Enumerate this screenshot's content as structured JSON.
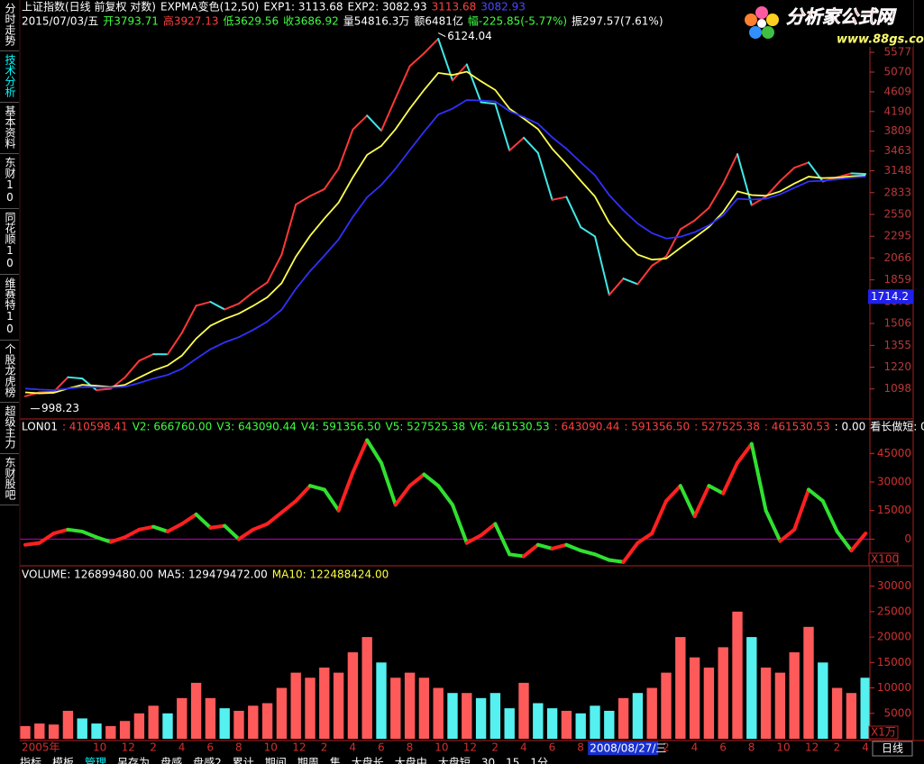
{
  "sidebar_tabs": [
    {
      "label": "分时走势"
    },
    {
      "label": "技术分析",
      "active": true
    },
    {
      "label": "基本资料"
    },
    {
      "label": "东财10"
    },
    {
      "label": "同花顺10"
    },
    {
      "label": "维赛特10"
    },
    {
      "label": "个股龙虎榜"
    },
    {
      "label": "超级主力"
    },
    {
      "label": "东财股吧"
    }
  ],
  "logo": {
    "title": "分析家公式网",
    "url": "www.88gs.com"
  },
  "period_label": "日线",
  "toolbar": [
    "指标",
    "模板",
    "管理",
    "另存为",
    "盘感",
    "盘感2",
    "累计",
    "期间",
    "期周",
    "集",
    "大盘长",
    "大盘中",
    "大盘短",
    "30",
    "15",
    "1分"
  ],
  "chart_data": [
    {
      "type": "line",
      "log_scale": true,
      "header": [
        [
          {
            "text": "上证指数(日线 前复权 对数)",
            "color": "#ffffff"
          },
          {
            "text": "EXPMA变色(12,50)",
            "color": "#ffffff"
          },
          {
            "text": "EXP1: 3113.68",
            "color": "#ffffff"
          },
          {
            "text": "EXP2: 3082.93",
            "color": "#ffffff"
          },
          {
            "text": "3113.68",
            "color": "#ff4040"
          },
          {
            "text": "3082.93",
            "color": "#4848ff"
          }
        ],
        [
          {
            "text": "2015/07/03/五",
            "color": "#ffffff"
          },
          {
            "text": "开3793.71",
            "color": "#40ff40"
          },
          {
            "text": "高3927.13",
            "color": "#ff4040"
          },
          {
            "text": "低3629.56",
            "color": "#40ff40"
          },
          {
            "text": "收3686.92",
            "color": "#40ff40"
          },
          {
            "text": "量54816.3万",
            "color": "#ffffff"
          },
          {
            "text": "额6481亿",
            "color": "#ffffff"
          },
          {
            "text": "幅-225.85(-5.77%)",
            "color": "#40ff40"
          },
          {
            "text": "振297.57(7.61%)",
            "color": "#ffffff"
          }
        ]
      ],
      "ylim": [
        950,
        7180
      ],
      "yticks": [
        1098,
        1220,
        1355,
        1506,
        1673,
        1859,
        2066,
        2295,
        2550,
        2833,
        3148,
        3463,
        3809,
        4190,
        4609,
        5070,
        5577
      ],
      "axis_color": "#b83838",
      "max_label": 6124.04,
      "min_label": 998.23,
      "crosshair_value": 1714.2,
      "series": [
        {
          "up_color": "#ff3838",
          "down_color": "#40e8e8",
          "values": [
            1060,
            1080,
            1083,
            1162,
            1155,
            1092,
            1099,
            1161,
            1258,
            1299,
            1298,
            1440,
            1641,
            1672,
            1612,
            1658,
            1752,
            1837,
            2099,
            2675,
            2786,
            2881,
            3183,
            3841,
            4109,
            3820,
            4471,
            5218,
            5552,
            5954,
            4871,
            5261,
            4383,
            4348,
            3472,
            3693,
            3433,
            2736,
            2775,
            2397,
            2293,
            1729,
            1871,
            1821,
            1991,
            2082,
            2373,
            2477,
            2632,
            2959,
            3412,
            2667,
            2779,
            2996,
            3195,
            3277,
            2989,
            3051,
            3109,
            3100
          ]
        },
        {
          "color": "#ffff50",
          "values": [
            1080,
            1075,
            1078,
            1100,
            1120,
            1115,
            1108,
            1120,
            1160,
            1200,
            1230,
            1290,
            1400,
            1490,
            1540,
            1580,
            1640,
            1710,
            1830,
            2080,
            2300,
            2500,
            2700,
            3050,
            3400,
            3550,
            3850,
            4250,
            4650,
            5050,
            5000,
            5080,
            4850,
            4650,
            4250,
            4050,
            3850,
            3500,
            3250,
            3000,
            2780,
            2450,
            2250,
            2100,
            2050,
            2060,
            2170,
            2280,
            2400,
            2580,
            2850,
            2800,
            2790,
            2850,
            2960,
            3060,
            3040,
            3045,
            3065,
            3075
          ]
        },
        {
          "color": "#3030ff",
          "values": [
            1100,
            1095,
            1092,
            1100,
            1108,
            1107,
            1105,
            1110,
            1130,
            1155,
            1175,
            1210,
            1270,
            1330,
            1375,
            1410,
            1460,
            1520,
            1610,
            1780,
            1940,
            2090,
            2260,
            2520,
            2770,
            2940,
            3180,
            3480,
            3800,
            4130,
            4250,
            4430,
            4420,
            4400,
            4200,
            4080,
            3950,
            3700,
            3500,
            3280,
            3080,
            2800,
            2600,
            2440,
            2330,
            2270,
            2290,
            2340,
            2420,
            2540,
            2750,
            2740,
            2750,
            2810,
            2900,
            2990,
            3000,
            3020,
            3045,
            3060
          ]
        }
      ]
    },
    {
      "type": "line",
      "header": [
        [
          {
            "text": "LON01",
            "color": "#ffffff"
          },
          {
            "text": ": 410598.41",
            "color": "#ff4040"
          },
          {
            "text": "V2: 666760.00",
            "color": "#40ff40"
          },
          {
            "text": "V3: 643090.44",
            "color": "#40ff40"
          },
          {
            "text": "V4: 591356.50",
            "color": "#40ff40"
          },
          {
            "text": "V5: 527525.38",
            "color": "#40ff40"
          },
          {
            "text": "V6: 461530.53",
            "color": "#40ff40"
          },
          {
            "text": ": 643090.44",
            "color": "#ff4040"
          },
          {
            "text": ": 591356.50",
            "color": "#ff4040"
          },
          {
            "text": ": 527525.38",
            "color": "#ff4040"
          },
          {
            "text": ": 461530.53",
            "color": "#ff4040"
          },
          {
            "text": ": 0.00",
            "color": "#ffffff"
          },
          {
            "text": "看长做短: 0.00",
            "color": "#ffffff"
          }
        ]
      ],
      "ylim": [
        -14000,
        56000
      ],
      "yticks": [
        0,
        15000,
        30000,
        45000
      ],
      "axis_color": "#d03030",
      "reference_line": {
        "value": 0,
        "color": "#c000c0"
      },
      "scale_label": "X100",
      "series": [
        {
          "up_color": "#ff2020",
          "down_color": "#30e030",
          "values": [
            -3000,
            -2000,
            3000,
            5000,
            4000,
            1000,
            -1500,
            1000,
            5000,
            6500,
            4000,
            8000,
            13000,
            6000,
            7000,
            0,
            5000,
            8000,
            14000,
            20000,
            28000,
            26000,
            15000,
            35000,
            52000,
            40000,
            18000,
            28000,
            34000,
            28000,
            18000,
            -2000,
            2000,
            8000,
            -8000,
            -9000,
            -3000,
            -5000,
            -3000,
            -6000,
            -8000,
            -11000,
            -12000,
            -2000,
            3000,
            20000,
            28000,
            12000,
            28000,
            24000,
            40000,
            50000,
            15000,
            -1000,
            5000,
            26000,
            20000,
            4000,
            -6000,
            3000
          ]
        }
      ]
    },
    {
      "type": "bar",
      "header": [
        [
          {
            "text": "VOLUME: 126899480.00",
            "color": "#ffffff"
          },
          {
            "text": "MA5: 129479472.00",
            "color": "#ffffff"
          },
          {
            "text": "MA10: 122488424.00",
            "color": "#ffff40"
          }
        ]
      ],
      "ylim": [
        0,
        31000
      ],
      "yticks": [
        5000,
        10000,
        15000,
        20000,
        25000,
        30000
      ],
      "axis_color": "#d03030",
      "scale_label": "X1万",
      "up_color": "#ff5a5a",
      "down_color": "#55f0f0",
      "values": [
        2500,
        3000,
        2800,
        5500,
        4000,
        3000,
        2500,
        3500,
        5000,
        6500,
        5000,
        8000,
        11000,
        8000,
        6000,
        5500,
        6500,
        7000,
        10000,
        13000,
        12000,
        14000,
        13000,
        17000,
        20000,
        15000,
        12000,
        13000,
        12000,
        10000,
        9000,
        9000,
        8000,
        9000,
        6000,
        11000,
        7000,
        6000,
        5500,
        5000,
        6500,
        5500,
        8000,
        9000,
        10000,
        13000,
        20000,
        16000,
        14000,
        18000,
        25000,
        20000,
        14000,
        13000,
        17000,
        22000,
        15000,
        10000,
        9000,
        12000
      ],
      "categories": [
        "2005年",
        null,
        null,
        null,
        null,
        "10",
        null,
        "12",
        null,
        "2",
        null,
        "4",
        null,
        "6",
        null,
        "8",
        null,
        "10",
        null,
        "12",
        null,
        "2",
        null,
        "4",
        null,
        "6",
        null,
        "8",
        null,
        "10",
        null,
        "12",
        null,
        "2",
        null,
        "4",
        null,
        "6",
        null,
        "8",
        null,
        null,
        null,
        null,
        null,
        "2",
        null,
        "4",
        null,
        "6",
        null,
        "8",
        null,
        "10",
        null,
        "12",
        null,
        "2",
        null,
        "4"
      ],
      "crosshair_date": "2008/08/27/三",
      "crosshair_color": "#1830d0"
    }
  ]
}
